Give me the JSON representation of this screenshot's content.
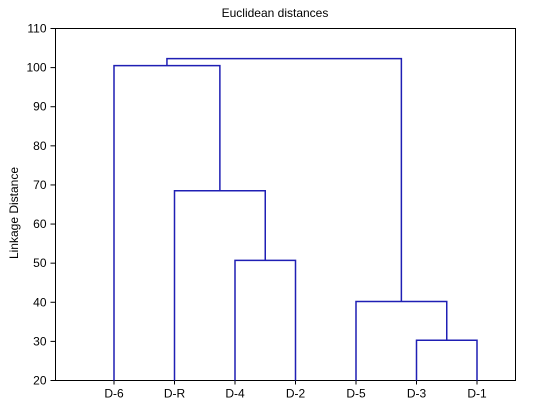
{
  "chart_data": {
    "type": "dendrogram",
    "title": "Euclidean distances",
    "ylabel": "Linkage Distance",
    "xlabel": "",
    "ylim": [
      20,
      110
    ],
    "yticks": [
      20,
      30,
      40,
      50,
      60,
      70,
      80,
      90,
      100,
      110
    ],
    "grid": false,
    "leaves": [
      "D-6",
      "D-R",
      "D-4",
      "D-2",
      "D-5",
      "D-3",
      "D-1"
    ],
    "merges": [
      {
        "left": [
          "D-3"
        ],
        "right": [
          "D-1"
        ],
        "height": 30.3
      },
      {
        "left": [
          "D-5"
        ],
        "right": [
          "D-3",
          "D-1"
        ],
        "height": 40.2
      },
      {
        "left": [
          "D-4"
        ],
        "right": [
          "D-2"
        ],
        "height": 50.7
      },
      {
        "left": [
          "D-R"
        ],
        "right": [
          "D-4",
          "D-2"
        ],
        "height": 68.5
      },
      {
        "left": [
          "D-6"
        ],
        "right": [
          "D-R",
          "D-4",
          "D-2"
        ],
        "height": 100.5
      },
      {
        "left": [
          "D-6",
          "D-R",
          "D-4",
          "D-2"
        ],
        "right": [
          "D-5",
          "D-3",
          "D-1"
        ],
        "height": 102.3
      }
    ],
    "line_color": "#1f1fb4"
  }
}
